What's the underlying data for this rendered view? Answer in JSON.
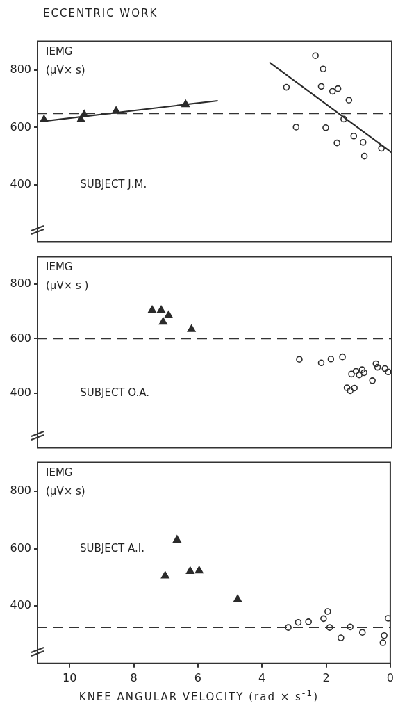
{
  "chart_data": [
    {
      "type": "scatter",
      "title": "ECCENTRIC WORK",
      "ylabel": "IEMG (µV× s)",
      "annotations": [
        "SUBJECT J.M."
      ],
      "xlim": [
        11,
        0
      ],
      "xticks": [
        10,
        8,
        6,
        4,
        2,
        0
      ],
      "ylim": [
        200,
        900
      ],
      "yticks": [
        400,
        600,
        800
      ],
      "tick_labels": "y",
      "grid": false,
      "legend": false,
      "ref_lines": [
        {
          "axis": "y",
          "value": 648,
          "color": "#333333",
          "line_style": "dashed"
        }
      ],
      "series": [
        {
          "type": "scatter",
          "marker": "triangle",
          "color": "#2b2b2b",
          "x": [
            10.8,
            9.65,
            9.55,
            8.56,
            6.4
          ],
          "values": [
            627,
            627,
            645,
            657,
            680
          ]
        },
        {
          "type": "line",
          "marker": "none",
          "line_style": "solid",
          "color": "#2b2b2b",
          "x": [
            10.8,
            5.4
          ],
          "values": [
            622,
            693
          ]
        },
        {
          "type": "scatter",
          "marker": "circle",
          "color": "#2b2b2b",
          "x": [
            3.27,
            2.97,
            2.37,
            2.13,
            2.19,
            2.05,
            1.84,
            1.67,
            1.7,
            1.49,
            1.33,
            1.18,
            0.89,
            0.85,
            0.32
          ],
          "values": [
            740,
            601,
            850,
            804,
            743,
            599,
            726,
            735,
            546,
            629,
            695,
            570,
            548,
            500,
            527
          ]
        },
        {
          "type": "line",
          "marker": "none",
          "line_style": "solid",
          "color": "#2b2b2b",
          "x": [
            3.8,
            0
          ],
          "values": [
            827,
            512
          ]
        }
      ]
    },
    {
      "type": "scatter",
      "ylabel": "IEMG (µV× s )",
      "annotations": [
        "SUBJECT O.A."
      ],
      "xlim": [
        11,
        0
      ],
      "xticks": [
        10,
        8,
        6,
        4,
        2,
        0
      ],
      "ylim": [
        200,
        900
      ],
      "yticks": [
        400,
        600,
        800
      ],
      "tick_labels": "y",
      "grid": false,
      "legend": false,
      "ref_lines": [
        {
          "axis": "y",
          "value": 600,
          "color": "#333333",
          "line_style": "dashed"
        }
      ],
      "series": [
        {
          "type": "scatter",
          "marker": "triangle",
          "color": "#2b2b2b",
          "x": [
            7.44,
            7.16,
            6.93,
            7.1,
            6.22
          ],
          "values": [
            704,
            704,
            685,
            661,
            634
          ]
        },
        {
          "type": "scatter",
          "marker": "circle",
          "color": "#2b2b2b",
          "x": [
            2.87,
            2.19,
            1.89,
            1.53,
            1.25,
            1.11,
            1.01,
            0.92,
            0.86,
            1.39,
            1.29,
            1.16,
            0.6,
            0.49,
            0.44,
            0.21,
            0.11
          ],
          "values": [
            524,
            511,
            525,
            533,
            470,
            480,
            467,
            486,
            475,
            420,
            409,
            419,
            446,
            508,
            495,
            490,
            478
          ]
        }
      ]
    },
    {
      "type": "scatter",
      "ylabel": "IEMG (µV× s)",
      "xlabel": "KNEE ANGULAR VELOCITY (rad × s$^{-1}$)",
      "annotations": [
        "SUBJECT A.I."
      ],
      "xlim": [
        11,
        0
      ],
      "xticks": [
        10,
        8,
        6,
        4,
        2,
        0
      ],
      "ylim": [
        200,
        900
      ],
      "yticks": [
        400,
        600,
        800
      ],
      "grid": false,
      "legend": false,
      "ref_lines": [
        {
          "axis": "y",
          "value": 325,
          "color": "#333333",
          "line_style": "dashed"
        }
      ],
      "series": [
        {
          "type": "scatter",
          "marker": "triangle",
          "color": "#2b2b2b",
          "x": [
            6.65,
            7.02,
            6.24,
            5.96,
            4.76
          ],
          "values": [
            630,
            505,
            521,
            523,
            423
          ]
        },
        {
          "type": "scatter",
          "marker": "circle",
          "color": "#2b2b2b",
          "x": [
            3.18,
            2.87,
            2.55,
            2.08,
            1.95,
            1.89,
            1.54,
            1.25,
            0.87,
            0.07,
            0.19,
            0.23
          ],
          "values": [
            325,
            343,
            345,
            356,
            381,
            325,
            289,
            327,
            308,
            357,
            297,
            272
          ]
        }
      ]
    }
  ]
}
